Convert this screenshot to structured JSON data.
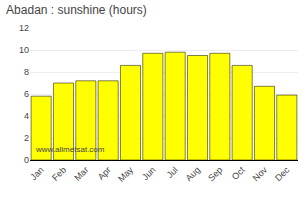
{
  "chart_data": {
    "type": "bar",
    "title": "Abadan : sunshine (hours)",
    "categories": [
      "Jan",
      "Feb",
      "Mar",
      "Apr",
      "May",
      "Jun",
      "Jul",
      "Aug",
      "Sep",
      "Oct",
      "Nov",
      "Dec"
    ],
    "values": [
      5.8,
      7.0,
      7.2,
      7.2,
      8.6,
      9.7,
      9.8,
      9.5,
      9.7,
      8.6,
      6.7,
      5.9
    ],
    "color": "#FFFF00",
    "ylim": [
      0,
      12
    ],
    "yticks": [
      0,
      2,
      4,
      6,
      8,
      10,
      12
    ],
    "grid": true,
    "annotations": [
      "www.allmetsat.com"
    ]
  }
}
